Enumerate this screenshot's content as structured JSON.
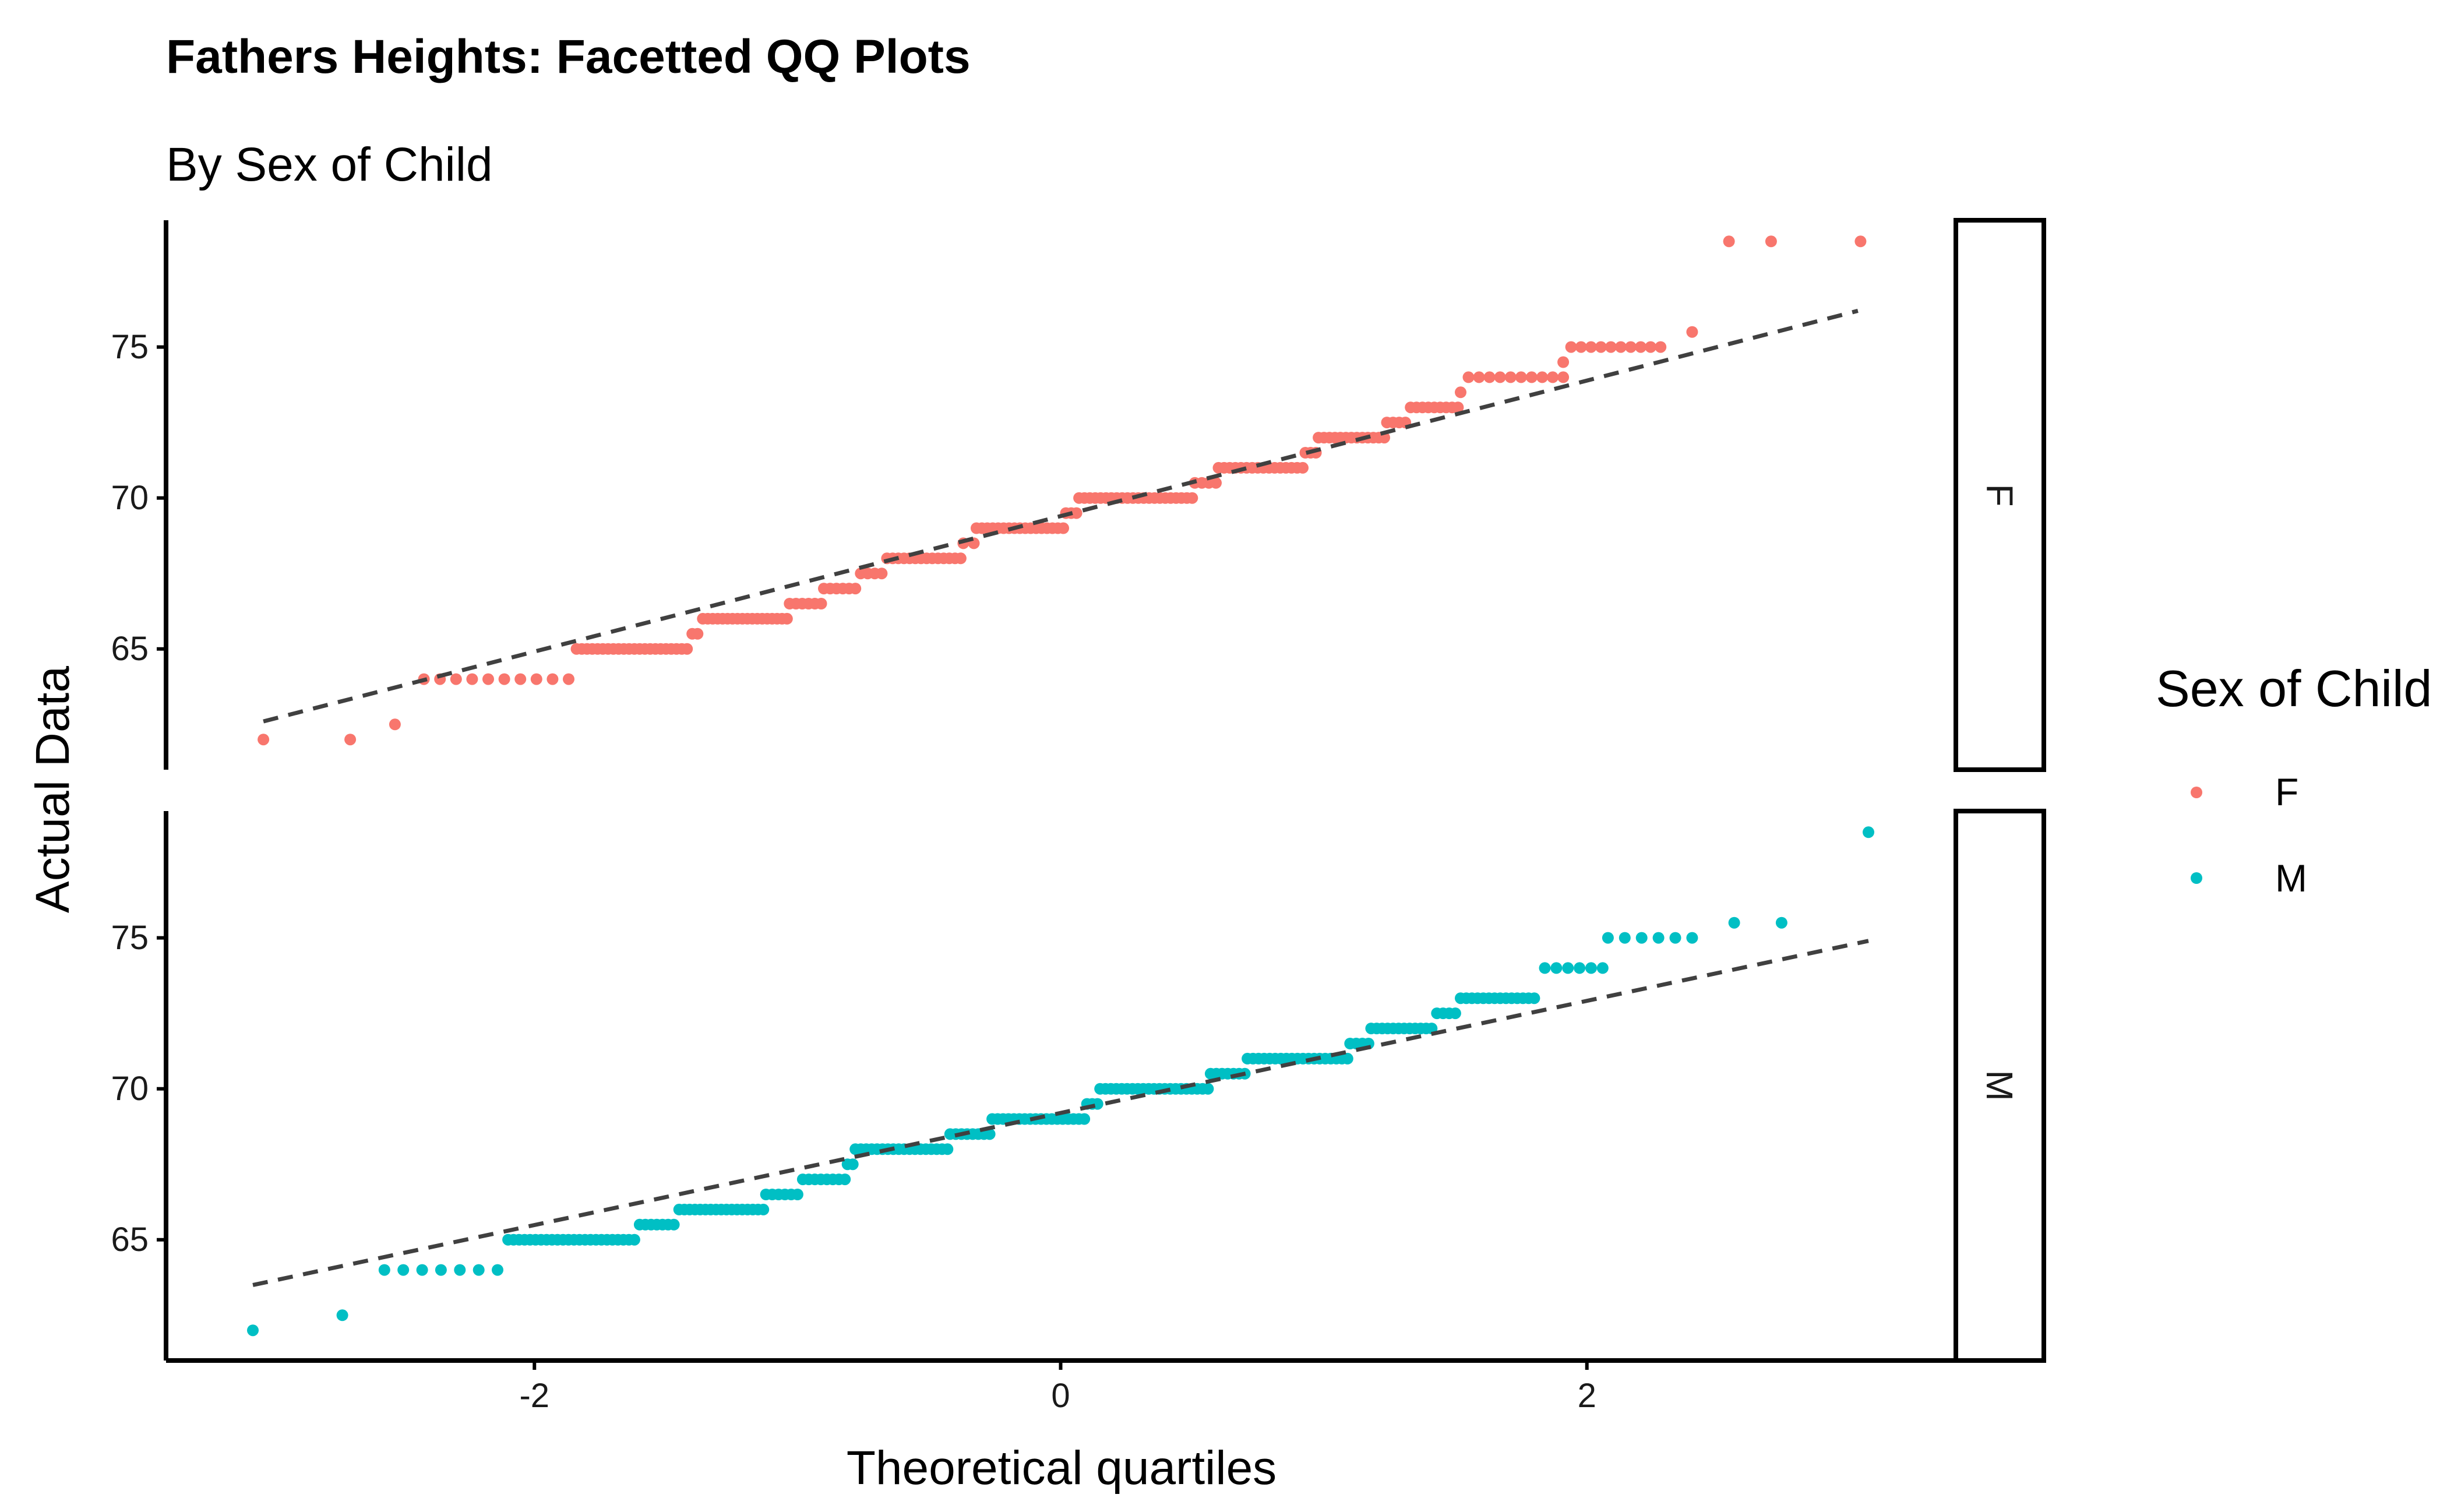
{
  "chart_data": {
    "type": "scatter",
    "title": "Fathers Heights: Facetted QQ Plots",
    "subtitle": "By Sex of Child",
    "xlabel": "Theoretical quartiles",
    "ylabel": "Actual Data",
    "xlim": [
      -3.4,
      3.4
    ],
    "ylim": [
      61.0,
      79.2
    ],
    "xticks": [
      -2,
      0,
      2
    ],
    "xtick_labels": [
      "-2",
      "0",
      "2"
    ],
    "yticks": [
      65,
      70,
      75
    ],
    "ytick_labels": [
      "65",
      "70",
      "75"
    ],
    "grid": false,
    "legend": {
      "title": "Sex of Child",
      "position": "right",
      "entries": [
        {
          "label": "F",
          "color": "#F8766D"
        },
        {
          "label": "M",
          "color": "#00BFC4"
        }
      ]
    },
    "facets": [
      {
        "strip_label": "F",
        "color": "#F8766D",
        "reference_line": {
          "x": [
            -3.03,
            3.03
          ],
          "y": [
            62.6,
            76.2
          ]
        },
        "steps": [
          {
            "x_from": -3.03,
            "x_to": -3.03,
            "y": 62.0,
            "n": 1
          },
          {
            "x_from": -2.7,
            "x_to": -2.7,
            "y": 62.0,
            "n": 1
          },
          {
            "x_from": -2.53,
            "x_to": -2.53,
            "y": 62.5,
            "n": 1
          },
          {
            "x_from": -2.42,
            "x_to": -1.87,
            "y": 64.0,
            "n": 10
          },
          {
            "x_from": -1.84,
            "x_to": -1.42,
            "y": 65.0,
            "n": 22
          },
          {
            "x_from": -1.4,
            "x_to": -1.38,
            "y": 65.5,
            "n": 2
          },
          {
            "x_from": -1.36,
            "x_to": -1.04,
            "y": 66.0,
            "n": 18
          },
          {
            "x_from": -1.03,
            "x_to": -0.91,
            "y": 66.5,
            "n": 6
          },
          {
            "x_from": -0.9,
            "x_to": -0.78,
            "y": 67.0,
            "n": 6
          },
          {
            "x_from": -0.76,
            "x_to": -0.68,
            "y": 67.5,
            "n": 4
          },
          {
            "x_from": -0.66,
            "x_to": -0.38,
            "y": 68.0,
            "n": 14
          },
          {
            "x_from": -0.37,
            "x_to": -0.33,
            "y": 68.5,
            "n": 2
          },
          {
            "x_from": -0.32,
            "x_to": 0.01,
            "y": 69.0,
            "n": 17
          },
          {
            "x_from": 0.02,
            "x_to": 0.06,
            "y": 69.5,
            "n": 3
          },
          {
            "x_from": 0.07,
            "x_to": 0.5,
            "y": 70.0,
            "n": 22
          },
          {
            "x_from": 0.51,
            "x_to": 0.59,
            "y": 70.5,
            "n": 4
          },
          {
            "x_from": 0.6,
            "x_to": 0.92,
            "y": 71.0,
            "n": 16
          },
          {
            "x_from": 0.93,
            "x_to": 0.97,
            "y": 71.5,
            "n": 3
          },
          {
            "x_from": 0.98,
            "x_to": 1.23,
            "y": 72.0,
            "n": 13
          },
          {
            "x_from": 1.24,
            "x_to": 1.31,
            "y": 72.5,
            "n": 4
          },
          {
            "x_from": 1.33,
            "x_to": 1.51,
            "y": 73.0,
            "n": 9
          },
          {
            "x_from": 1.52,
            "x_to": 1.52,
            "y": 73.5,
            "n": 1
          },
          {
            "x_from": 1.55,
            "x_to": 1.91,
            "y": 74.0,
            "n": 10
          },
          {
            "x_from": 1.91,
            "x_to": 1.91,
            "y": 74.5,
            "n": 1
          },
          {
            "x_from": 1.94,
            "x_to": 2.28,
            "y": 75.0,
            "n": 10
          },
          {
            "x_from": 2.4,
            "x_to": 2.4,
            "y": 75.5,
            "n": 1
          },
          {
            "x_from": 2.54,
            "x_to": 2.7,
            "y": 78.5,
            "n": 2
          },
          {
            "x_from": 3.04,
            "x_to": 3.04,
            "y": 78.5,
            "n": 1
          }
        ]
      },
      {
        "strip_label": "M",
        "color": "#00BFC4",
        "reference_line": {
          "x": [
            -3.07,
            3.07
          ],
          "y": [
            63.5,
            74.9
          ]
        },
        "steps": [
          {
            "x_from": -3.07,
            "x_to": -3.07,
            "y": 62.0,
            "n": 1
          },
          {
            "x_from": -2.73,
            "x_to": -2.73,
            "y": 62.5,
            "n": 1
          },
          {
            "x_from": -2.57,
            "x_to": -2.14,
            "y": 64.0,
            "n": 7
          },
          {
            "x_from": -2.1,
            "x_to": -1.62,
            "y": 65.0,
            "n": 24
          },
          {
            "x_from": -1.6,
            "x_to": -1.47,
            "y": 65.5,
            "n": 7
          },
          {
            "x_from": -1.45,
            "x_to": -1.13,
            "y": 66.0,
            "n": 17
          },
          {
            "x_from": -1.12,
            "x_to": -1.0,
            "y": 66.5,
            "n": 6
          },
          {
            "x_from": -0.98,
            "x_to": -0.82,
            "y": 67.0,
            "n": 8
          },
          {
            "x_from": -0.81,
            "x_to": -0.79,
            "y": 67.5,
            "n": 2
          },
          {
            "x_from": -0.78,
            "x_to": -0.43,
            "y": 68.0,
            "n": 18
          },
          {
            "x_from": -0.42,
            "x_to": -0.27,
            "y": 68.5,
            "n": 8
          },
          {
            "x_from": -0.26,
            "x_to": 0.09,
            "y": 69.0,
            "n": 18
          },
          {
            "x_from": 0.1,
            "x_to": 0.14,
            "y": 69.5,
            "n": 3
          },
          {
            "x_from": 0.15,
            "x_to": 0.56,
            "y": 70.0,
            "n": 21
          },
          {
            "x_from": 0.57,
            "x_to": 0.7,
            "y": 70.5,
            "n": 7
          },
          {
            "x_from": 0.71,
            "x_to": 1.09,
            "y": 71.0,
            "n": 19
          },
          {
            "x_from": 1.1,
            "x_to": 1.17,
            "y": 71.5,
            "n": 4
          },
          {
            "x_from": 1.18,
            "x_to": 1.41,
            "y": 72.0,
            "n": 12
          },
          {
            "x_from": 1.43,
            "x_to": 1.5,
            "y": 72.5,
            "n": 4
          },
          {
            "x_from": 1.52,
            "x_to": 1.8,
            "y": 73.0,
            "n": 14
          },
          {
            "x_from": 1.84,
            "x_to": 2.06,
            "y": 74.0,
            "n": 6
          },
          {
            "x_from": 2.08,
            "x_to": 2.4,
            "y": 75.0,
            "n": 6
          },
          {
            "x_from": 2.56,
            "x_to": 2.74,
            "y": 75.5,
            "n": 2
          },
          {
            "x_from": 3.07,
            "x_to": 3.07,
            "y": 78.5,
            "n": 1
          }
        ]
      }
    ]
  }
}
